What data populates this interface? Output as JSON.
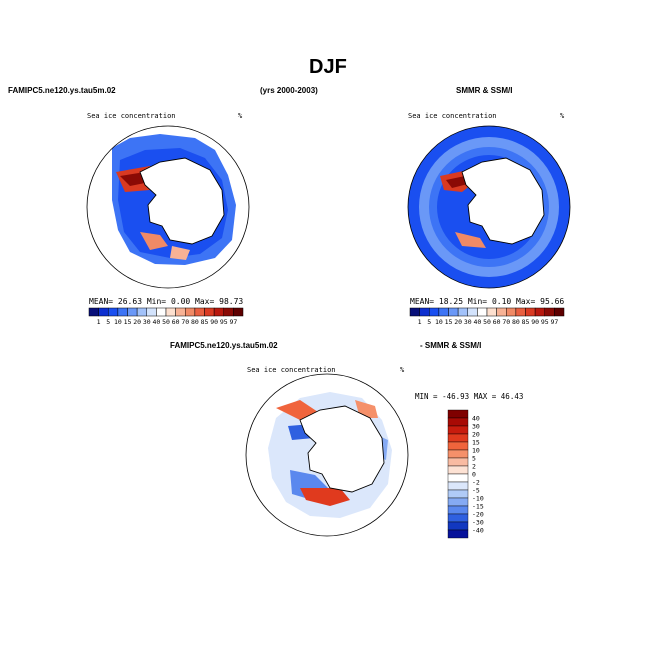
{
  "page": {
    "title": "DJF",
    "left_header": "FAMIPC5.ne120.ys.tau5m.02",
    "period": "(yrs 2000-2003)",
    "right_header": "SMMR & SSM/I",
    "diff_left_header": "FAMIPC5.ne120.ys.tau5m.02",
    "diff_right_header": "- SMMR & SSM/I"
  },
  "panels": {
    "model": {
      "label": "Sea ice concentration",
      "unit": "%",
      "stats": {
        "mean_label": "MEAN=",
        "mean": "26.63",
        "min_label": "Min=",
        "min": "0.00",
        "max_label": "Max=",
        "max": "98.73"
      }
    },
    "obs": {
      "label": "Sea ice concentration",
      "unit": "%",
      "stats": {
        "mean_label": "MEAN=",
        "mean": "18.25",
        "min_label": "Min=",
        "min": "0.10",
        "max_label": "Max=",
        "max": "95.66"
      }
    },
    "diff": {
      "label": "Sea ice concentration",
      "unit": "%",
      "minmax": "MIN = -46.93 MAX =  46.43"
    }
  },
  "chart_data": [
    {
      "type": "heatmap",
      "projection": "south-polar-stereographic",
      "colorbar": {
        "orientation": "horizontal",
        "levels": [
          "1",
          "5",
          "10",
          "15",
          "20",
          "30",
          "40",
          "50",
          "60",
          "70",
          "80",
          "85",
          "90",
          "95",
          "97"
        ],
        "colors": [
          "#08107a",
          "#0d2fd0",
          "#1a4ff0",
          "#3d74f5",
          "#6a98f7",
          "#a2c2fa",
          "#d3e3fc",
          "#ffffff",
          "#fde0cf",
          "#f7b295",
          "#f08a66",
          "#e85f40",
          "#d93a22",
          "#b8180e",
          "#8a0a05",
          "#5e0000"
        ]
      },
      "mean": 26.63,
      "min": 0.0,
      "max": 98.73
    },
    {
      "type": "heatmap",
      "projection": "south-polar-stereographic",
      "colorbar": {
        "orientation": "horizontal",
        "levels": [
          "1",
          "5",
          "10",
          "15",
          "20",
          "30",
          "40",
          "50",
          "60",
          "70",
          "80",
          "85",
          "90",
          "95",
          "97"
        ]
      },
      "mean": 18.25,
      "min": 0.1,
      "max": 95.66
    },
    {
      "type": "heatmap",
      "projection": "south-polar-stereographic",
      "colorbar": {
        "orientation": "vertical",
        "levels": [
          "40",
          "30",
          "20",
          "15",
          "10",
          "5",
          "2",
          "0",
          "-2",
          "-5",
          "-10",
          "-15",
          "-20",
          "-30",
          "-40"
        ],
        "colors": [
          "#7f0000",
          "#a80a05",
          "#c81c0e",
          "#e03a1e",
          "#f0643c",
          "#f5906a",
          "#f9bba2",
          "#fde2d4",
          "#ffffff",
          "#dbe7fb",
          "#b0cbf7",
          "#85aaf3",
          "#5a88ee",
          "#2f60e0",
          "#1238c0",
          "#07129a"
        ]
      },
      "min": -46.93,
      "max": 46.43
    }
  ]
}
